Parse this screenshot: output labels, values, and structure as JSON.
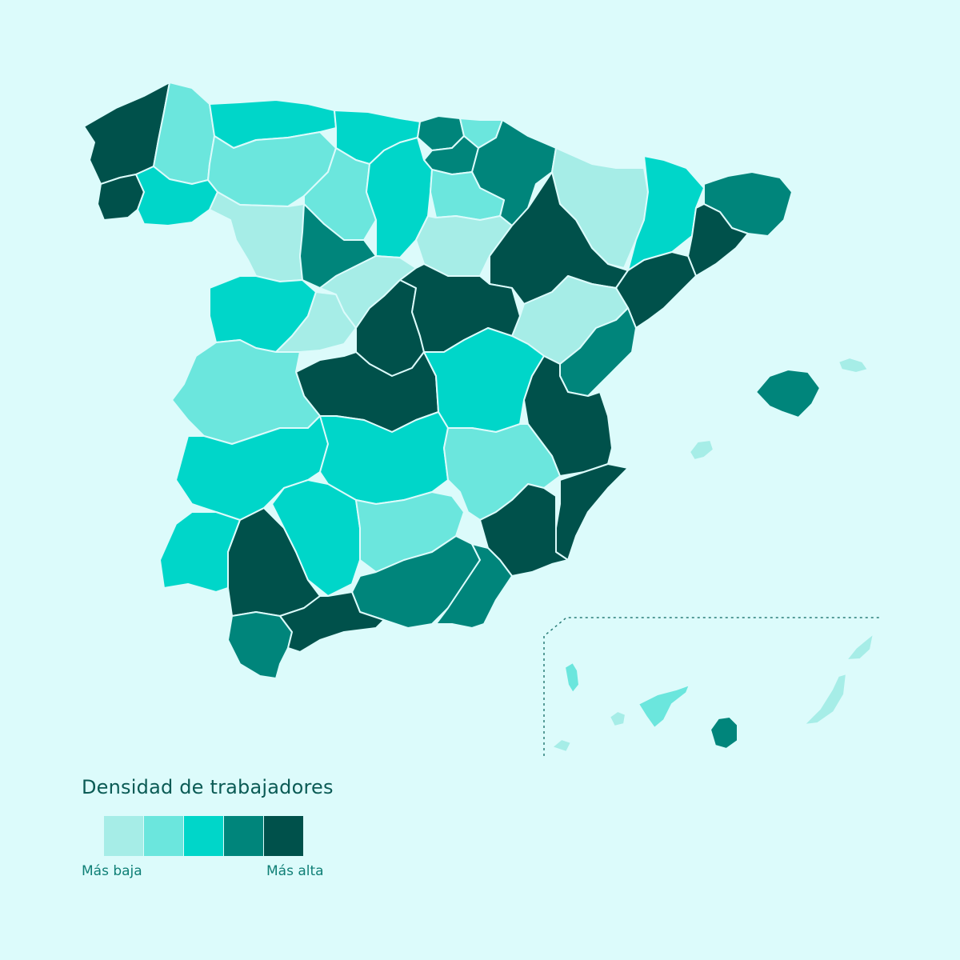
{
  "legend": {
    "title": "Densidad de trabajadores",
    "low_label": "Más baja",
    "high_label": "Más alta",
    "scale": [
      "#a6ede7",
      "#6be6dd",
      "#00d6c9",
      "#00857b",
      "#00514b"
    ]
  },
  "colors": {
    "background": "#dcfbfb",
    "border": "#dcfbfb",
    "text": "#0b5b55",
    "inset_frame": "#2a7d78"
  },
  "regions": [
    {
      "name": "A Coruña",
      "level": 5
    },
    {
      "name": "Lugo",
      "level": 2
    },
    {
      "name": "Pontevedra",
      "level": 5
    },
    {
      "name": "Ourense",
      "level": 3
    },
    {
      "name": "Asturias",
      "level": 3
    },
    {
      "name": "Cantabria",
      "level": 3
    },
    {
      "name": "Bizkaia",
      "level": 4
    },
    {
      "name": "Gipuzkoa",
      "level": 2
    },
    {
      "name": "Álava",
      "level": 4
    },
    {
      "name": "Navarra",
      "level": 4
    },
    {
      "name": "León",
      "level": 2
    },
    {
      "name": "Palencia",
      "level": 2
    },
    {
      "name": "Burgos",
      "level": 3
    },
    {
      "name": "La Rioja",
      "level": 2
    },
    {
      "name": "Zamora",
      "level": 1
    },
    {
      "name": "Valladolid",
      "level": 4
    },
    {
      "name": "Soria",
      "level": 1
    },
    {
      "name": "Huesca",
      "level": 1
    },
    {
      "name": "Lleida",
      "level": 3
    },
    {
      "name": "Girona",
      "level": 4
    },
    {
      "name": "Barcelona",
      "level": 5
    },
    {
      "name": "Zaragoza",
      "level": 5
    },
    {
      "name": "Tarragona",
      "level": 5
    },
    {
      "name": "Salamanca",
      "level": 3
    },
    {
      "name": "Ávila",
      "level": 1
    },
    {
      "name": "Segovia",
      "level": 1
    },
    {
      "name": "Madrid",
      "level": 5
    },
    {
      "name": "Guadalajara",
      "level": 5
    },
    {
      "name": "Teruel",
      "level": 1
    },
    {
      "name": "Castellón",
      "level": 4
    },
    {
      "name": "Cáceres",
      "level": 2
    },
    {
      "name": "Toledo",
      "level": 5
    },
    {
      "name": "Cuenca",
      "level": 3
    },
    {
      "name": "Valencia",
      "level": 5
    },
    {
      "name": "Badajoz",
      "level": 3
    },
    {
      "name": "Ciudad Real",
      "level": 3
    },
    {
      "name": "Albacete",
      "level": 2
    },
    {
      "name": "Alicante",
      "level": 5
    },
    {
      "name": "Murcia",
      "level": 5
    },
    {
      "name": "Huelva",
      "level": 3
    },
    {
      "name": "Sevilla",
      "level": 5
    },
    {
      "name": "Córdoba",
      "level": 3
    },
    {
      "name": "Jaén",
      "level": 2
    },
    {
      "name": "Granada",
      "level": 4
    },
    {
      "name": "Almería",
      "level": 4
    },
    {
      "name": "Cádiz",
      "level": 4
    },
    {
      "name": "Málaga",
      "level": 5
    },
    {
      "name": "Mallorca",
      "level": 4
    },
    {
      "name": "Menorca",
      "level": 1
    },
    {
      "name": "Ibiza",
      "level": 1
    },
    {
      "name": "Santa Cruz de Tenerife",
      "level": 2
    },
    {
      "name": "Las Palmas",
      "level": 4
    },
    {
      "name": "Lanzarote",
      "level": 1
    },
    {
      "name": "Fuerteventura",
      "level": 1
    },
    {
      "name": "La Palma",
      "level": 2
    },
    {
      "name": "La Gomera",
      "level": 1
    },
    {
      "name": "El Hierro",
      "level": 1
    }
  ]
}
